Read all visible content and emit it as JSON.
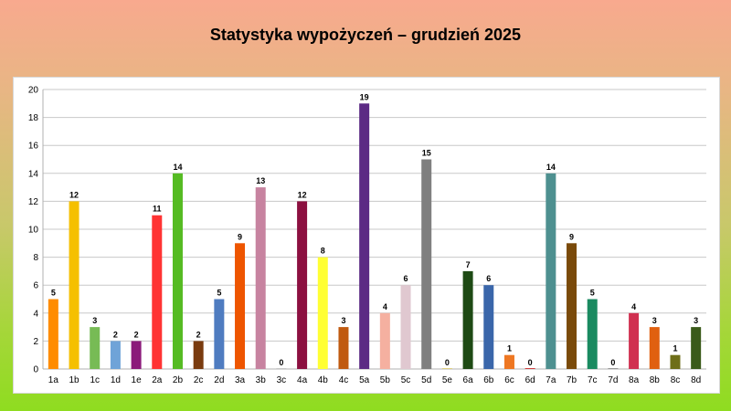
{
  "chart_data": {
    "type": "bar",
    "title": "Statystyka wypożyczeń – grudzień 2025",
    "xlabel": "",
    "ylabel": "",
    "ylim": [
      0,
      20
    ],
    "yticks": [
      0,
      2,
      4,
      6,
      8,
      10,
      12,
      14,
      16,
      18,
      20
    ],
    "grid": true,
    "legend": "none",
    "categories": [
      "1a",
      "1b",
      "1c",
      "1d",
      "1e",
      "2a",
      "2b",
      "2c",
      "2d",
      "3a",
      "3b",
      "3c",
      "4a",
      "4b",
      "4c",
      "5a",
      "5b",
      "5c",
      "5d",
      "5e",
      "6a",
      "6b",
      "6c",
      "6d",
      "7a",
      "7b",
      "7c",
      "7d",
      "8a",
      "8b",
      "8c",
      "8d"
    ],
    "values": [
      5,
      12,
      3,
      2,
      2,
      11,
      14,
      2,
      5,
      9,
      13,
      0,
      12,
      8,
      3,
      19,
      4,
      6,
      15,
      0,
      7,
      6,
      1,
      0,
      14,
      9,
      5,
      0,
      4,
      3,
      1,
      3
    ],
    "colors": [
      "#ff8c00",
      "#f5c000",
      "#77bb55",
      "#6fa3d8",
      "#8b1a7a",
      "#ff3333",
      "#55bb22",
      "#7a3b0f",
      "#4f7cc0",
      "#ee5500",
      "#c783a0",
      "#c8c8c8",
      "#8c1040",
      "#ffff33",
      "#c05a10",
      "#5c2a84",
      "#f5b0a0",
      "#e0c8d0",
      "#7f7f7f",
      "#e0d080",
      "#1e4a14",
      "#3a66aa",
      "#ee7722",
      "#d04040",
      "#4e9090",
      "#7a4a0a",
      "#1a8a60",
      "#999999",
      "#d03050",
      "#e06010",
      "#6e6e18",
      "#3a5a1a"
    ]
  }
}
